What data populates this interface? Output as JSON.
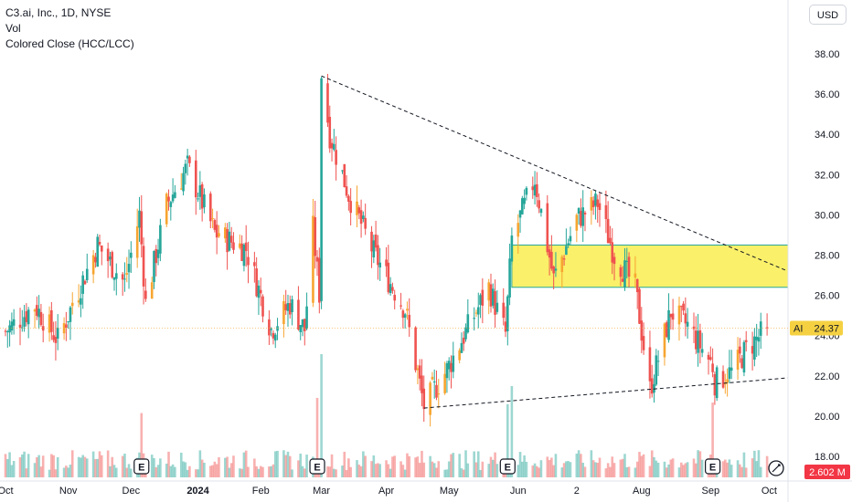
{
  "legend": {
    "symbol_line": "C3.ai, Inc., 1D, NYSE",
    "volume_label": "Vol",
    "indicator_label": "Colored Close (HCC/LCC)"
  },
  "currency_button": "USD",
  "price_tag": {
    "ticker": "AI",
    "value": "24.37",
    "color": "#f5d142"
  },
  "volume_tag": {
    "value": "2.602 M",
    "color": "#f23645"
  },
  "earnings_marker": "E",
  "colors": {
    "up": "#26a69a",
    "down": "#ef5350",
    "hcc": "#f7a531",
    "zone": "#faf06a",
    "zone_border": "#26a69a",
    "trendline": "#131722"
  },
  "chart_data": {
    "type": "candlestick",
    "title": "C3.ai, Inc., 1D, NYSE",
    "y_ticks": [
      "38.00",
      "36.00",
      "34.00",
      "32.00",
      "30.00",
      "28.00",
      "26.00",
      "24.00",
      "22.00",
      "20.00",
      "18.00"
    ],
    "ylim": [
      17.5,
      39
    ],
    "x_ticks": [
      "Oct",
      "Nov",
      "Dec",
      "2024",
      "Feb",
      "Mar",
      "Apr",
      "May",
      "Jun",
      "2",
      "Aug",
      "Sep",
      "Oct"
    ],
    "last_price": 24.37,
    "last_volume": "2.602 M",
    "series": [
      {
        "name": "AI",
        "points": [
          {
            "t": "2023-10-02",
            "c": 24.2
          },
          {
            "t": "2023-10-16",
            "c": 25.5
          },
          {
            "t": "2023-10-27",
            "c": 23.8
          },
          {
            "t": "2023-11-15",
            "c": 28.5
          },
          {
            "t": "2023-11-28",
            "c": 26.6
          },
          {
            "t": "2023-12-05",
            "c": 30.0
          },
          {
            "t": "2023-12-08",
            "c": 25.6
          },
          {
            "t": "2023-12-18",
            "c": 30.5
          },
          {
            "t": "2023-12-28",
            "c": 32.4
          },
          {
            "t": "2024-01-10",
            "c": 29.1
          },
          {
            "t": "2024-01-25",
            "c": 28.3
          },
          {
            "t": "2024-02-06",
            "c": 24.3
          },
          {
            "t": "2024-02-15",
            "c": 25.6
          },
          {
            "t": "2024-02-22",
            "c": 24.3
          },
          {
            "t": "2024-02-26",
            "c": 29.3
          },
          {
            "t": "2024-02-29",
            "c": 26.1
          },
          {
            "t": "2024-03-01",
            "c": 37.0
          },
          {
            "t": "2024-03-05",
            "c": 34.0
          },
          {
            "t": "2024-03-14",
            "c": 31.0
          },
          {
            "t": "2024-03-26",
            "c": 28.1
          },
          {
            "t": "2024-04-10",
            "c": 25.3
          },
          {
            "t": "2024-04-19",
            "c": 20.5
          },
          {
            "t": "2024-04-30",
            "c": 22.3
          },
          {
            "t": "2024-05-10",
            "c": 24.4
          },
          {
            "t": "2024-05-20",
            "c": 26.4
          },
          {
            "t": "2024-05-28",
            "c": 24.1
          },
          {
            "t": "2024-05-31",
            "c": 28.8
          },
          {
            "t": "2024-06-11",
            "c": 31.8
          },
          {
            "t": "2024-06-20",
            "c": 26.8
          },
          {
            "t": "2024-07-01",
            "c": 29.8
          },
          {
            "t": "2024-07-11",
            "c": 30.6
          },
          {
            "t": "2024-07-19",
            "c": 28.0
          },
          {
            "t": "2024-07-29",
            "c": 26.4
          },
          {
            "t": "2024-08-05",
            "c": 21.3
          },
          {
            "t": "2024-08-15",
            "c": 25.2
          },
          {
            "t": "2024-08-23",
            "c": 24.5
          },
          {
            "t": "2024-09-04",
            "c": 22.5
          },
          {
            "t": "2024-09-05",
            "c": 21.7
          },
          {
            "t": "2024-09-13",
            "c": 22.2
          },
          {
            "t": "2024-09-20",
            "c": 23.3
          },
          {
            "t": "2024-09-30",
            "c": 24.37
          }
        ]
      }
    ],
    "trendlines": [
      {
        "from": {
          "t": "2024-03-01",
          "v": 36.9
        },
        "to": {
          "t": "2024-10-10",
          "v": 27.2
        },
        "style": "dashed"
      },
      {
        "from": {
          "t": "2024-04-19",
          "v": 20.4
        },
        "to": {
          "t": "2024-10-10",
          "v": 21.9
        },
        "style": "dashed"
      }
    ],
    "zone": {
      "from_t": "2024-05-31",
      "to_t": "2024-10-10",
      "low": 26.4,
      "high": 28.5
    },
    "earnings_dates": [
      "2023-12-06",
      "2024-02-28",
      "2024-05-29",
      "2024-09-04"
    ],
    "grid": false,
    "y_axis_side": "right"
  }
}
